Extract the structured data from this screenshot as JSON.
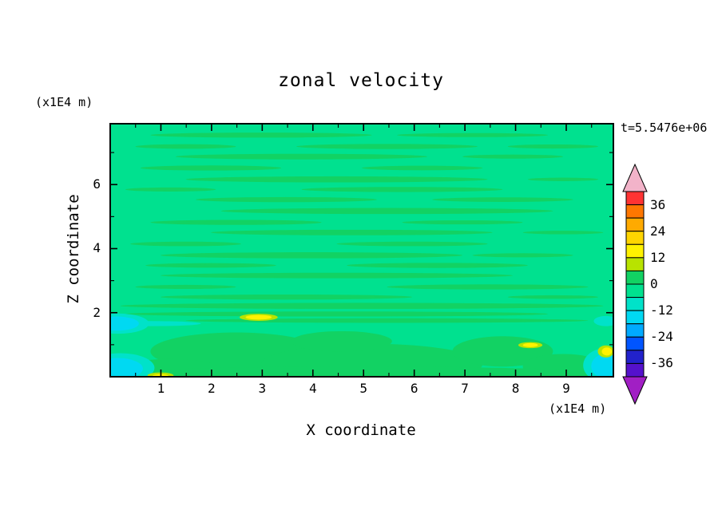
{
  "title": "zonal velocity",
  "timestamp": "t=5.5476e+06",
  "axes": {
    "x": {
      "label": "X coordinate",
      "unit": "(x1E4 m)",
      "ticks": [
        1,
        2,
        3,
        4,
        5,
        6,
        7,
        8,
        9
      ],
      "minor_ticks": [
        0.5,
        1.5,
        2.5,
        3.5,
        4.5,
        5.5,
        6.5,
        7.5,
        8.5,
        9.5
      ],
      "range": [
        0,
        9.93
      ]
    },
    "y": {
      "label": "Z coordinate",
      "unit": "(x1E4 m)",
      "ticks": [
        2,
        4,
        6
      ],
      "minor_ticks": [
        1,
        3,
        5,
        7
      ],
      "range": [
        0,
        7.9
      ]
    }
  },
  "colorbar": {
    "labels": [
      36,
      24,
      12,
      0,
      -12,
      -24,
      -36
    ],
    "arrow_top_color": "#f2b3c9",
    "arrow_bottom_color": "#a11fc4",
    "segments": [
      {
        "from": 36,
        "to": 42,
        "color": "#ff3333"
      },
      {
        "from": 30,
        "to": 36,
        "color": "#ff7700"
      },
      {
        "from": 24,
        "to": 30,
        "color": "#ffaa00"
      },
      {
        "from": 18,
        "to": 24,
        "color": "#ffd500"
      },
      {
        "from": 12,
        "to": 18,
        "color": "#fff200"
      },
      {
        "from": 6,
        "to": 12,
        "color": "#b8e300"
      },
      {
        "from": 0,
        "to": 6,
        "color": "#12d263"
      },
      {
        "from": -6,
        "to": 0,
        "color": "#00e18f"
      },
      {
        "from": -12,
        "to": -6,
        "color": "#00e2c9"
      },
      {
        "from": -18,
        "to": -12,
        "color": "#00d9f2"
      },
      {
        "from": -24,
        "to": -18,
        "color": "#00aaff"
      },
      {
        "from": -30,
        "to": -24,
        "color": "#0055ff"
      },
      {
        "from": -36,
        "to": -30,
        "color": "#2222cc"
      },
      {
        "from": -42,
        "to": -36,
        "color": "#5511cc"
      }
    ]
  },
  "chart_data": {
    "type": "heatmap",
    "title": "zonal velocity",
    "xlabel": "X coordinate (x1E4 m)",
    "ylabel": "Z coordinate (x1E4 m)",
    "time_label": "t=5.5476e+06",
    "x_range": [
      0,
      9.93
    ],
    "z_range": [
      0,
      7.9
    ],
    "contour_interval": 6,
    "levels": [
      -42,
      -36,
      -30,
      -24,
      -18,
      -12,
      -6,
      0,
      6,
      12,
      18,
      24,
      30,
      36,
      42
    ],
    "colorbar_labels": [
      36,
      24,
      12,
      0,
      -12,
      -24,
      -36
    ],
    "value_summary": "Filled-contour zonal velocity field; nearly everywhere within -6..+6. Background in the -6..0 band with thin horizontal 0..+6 streaks throughout the upper region and dense banding near z=2. Below z=2 are broad 0..+6 blobs, -18..-6 (teal/cyan) patches at the left edge, bottom-left and bottom-right corners, and small +6..+18 (yellow) spots near the bottom.",
    "field": {
      "base_color": "#00e18f",
      "base_level_range": [
        -6,
        0
      ],
      "groups": [
        {
          "name": "streak-band",
          "level_range": [
            0,
            6
          ],
          "color": "#12d263",
          "ellipses": [
            [
              0.3,
              0.045,
              0.22,
              0.01
            ],
            [
              0.72,
              0.045,
              0.15,
              0.008
            ],
            [
              0.15,
              0.09,
              0.1,
              0.009
            ],
            [
              0.55,
              0.09,
              0.18,
              0.01
            ],
            [
              0.88,
              0.09,
              0.09,
              0.008
            ],
            [
              0.38,
              0.13,
              0.25,
              0.011
            ],
            [
              0.8,
              0.13,
              0.1,
              0.008
            ],
            [
              0.2,
              0.175,
              0.14,
              0.01
            ],
            [
              0.62,
              0.175,
              0.12,
              0.009
            ],
            [
              0.45,
              0.22,
              0.3,
              0.012
            ],
            [
              0.9,
              0.22,
              0.07,
              0.007
            ],
            [
              0.12,
              0.26,
              0.09,
              0.008
            ],
            [
              0.58,
              0.26,
              0.2,
              0.01
            ],
            [
              0.35,
              0.3,
              0.18,
              0.01
            ],
            [
              0.78,
              0.3,
              0.14,
              0.009
            ],
            [
              0.55,
              0.345,
              0.33,
              0.012
            ],
            [
              0.25,
              0.39,
              0.17,
              0.01
            ],
            [
              0.7,
              0.39,
              0.12,
              0.008
            ],
            [
              0.48,
              0.43,
              0.28,
              0.011
            ],
            [
              0.9,
              0.43,
              0.08,
              0.007
            ],
            [
              0.15,
              0.475,
              0.11,
              0.009
            ],
            [
              0.6,
              0.475,
              0.15,
              0.009
            ],
            [
              0.4,
              0.52,
              0.3,
              0.012
            ],
            [
              0.82,
              0.52,
              0.1,
              0.008
            ],
            [
              0.2,
              0.56,
              0.13,
              0.009
            ],
            [
              0.65,
              0.56,
              0.18,
              0.01
            ],
            [
              0.45,
              0.6,
              0.35,
              0.011
            ],
            [
              0.15,
              0.645,
              0.1,
              0.008
            ],
            [
              0.75,
              0.645,
              0.2,
              0.01
            ],
            [
              0.35,
              0.685,
              0.25,
              0.01
            ],
            [
              0.88,
              0.685,
              0.09,
              0.007
            ],
            [
              0.5,
              0.72,
              0.48,
              0.012
            ],
            [
              0.45,
              0.752,
              0.42,
              0.01
            ],
            [
              0.55,
              0.778,
              0.4,
              0.009
            ],
            [
              0.25,
              0.9,
              0.17,
              0.075
            ],
            [
              0.52,
              0.95,
              0.22,
              0.08
            ],
            [
              0.46,
              0.86,
              0.1,
              0.04
            ],
            [
              0.78,
              0.9,
              0.1,
              0.06
            ],
            [
              0.9,
              0.96,
              0.08,
              0.05
            ],
            [
              0.12,
              0.97,
              0.1,
              0.04
            ],
            [
              0.5,
              0.99,
              0.5,
              0.03
            ]
          ]
        },
        {
          "name": "teal-patch",
          "level_range": [
            -12,
            -6
          ],
          "color": "#00e2c9",
          "ellipses": [
            [
              0.015,
              0.79,
              0.062,
              0.04
            ],
            [
              0.02,
              0.965,
              0.068,
              0.058
            ],
            [
              0.985,
              0.955,
              0.045,
              0.068
            ],
            [
              0.985,
              0.78,
              0.024,
              0.02
            ],
            [
              0.08,
              0.79,
              0.1,
              0.01
            ]
          ]
        },
        {
          "name": "cyan-patch",
          "level_range": [
            -18,
            -12
          ],
          "color": "#00d9f2",
          "ellipses": [
            [
              0.012,
              0.79,
              0.045,
              0.028
            ],
            [
              0.015,
              0.968,
              0.05,
              0.042
            ],
            [
              0.988,
              0.958,
              0.032,
              0.05
            ]
          ]
        },
        {
          "name": "yellowgreen-spot",
          "level_range": [
            6,
            12
          ],
          "color": "#b8e300",
          "ellipses": [
            [
              0.295,
              0.765,
              0.038,
              0.014
            ],
            [
              0.835,
              0.875,
              0.024,
              0.012
            ],
            [
              0.985,
              0.9,
              0.016,
              0.024
            ],
            [
              0.1,
              0.995,
              0.026,
              0.012
            ]
          ]
        },
        {
          "name": "yellow-spot",
          "level_range": [
            12,
            18
          ],
          "color": "#fff200",
          "ellipses": [
            [
              0.295,
              0.765,
              0.026,
              0.009
            ],
            [
              0.835,
              0.875,
              0.015,
              0.008
            ],
            [
              0.987,
              0.9,
              0.01,
              0.016
            ],
            [
              0.1,
              0.997,
              0.016,
              0.007
            ]
          ]
        }
      ]
    }
  }
}
